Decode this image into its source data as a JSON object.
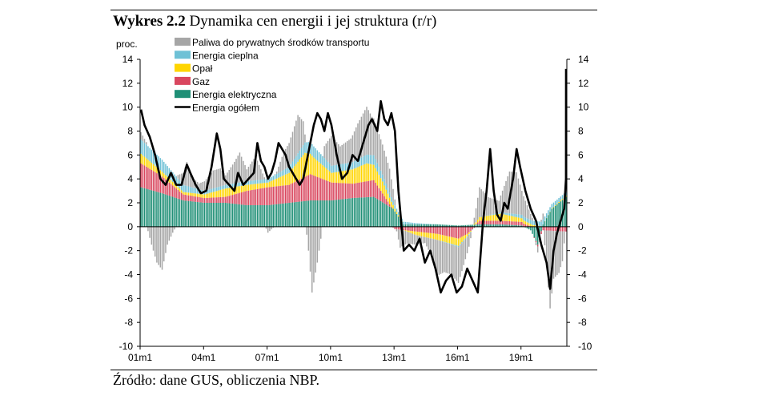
{
  "figure": {
    "title_label": "Wykres 2.2",
    "title_text": "Dynamika cen energii i jej struktura (r/r)",
    "source": "Źródło: dane GUS, obliczenia NBP."
  },
  "chart_data": {
    "type": "bar",
    "ylabel": "proc.",
    "ylim": [
      -10,
      14
    ],
    "yticks": [
      -10,
      -8,
      -6,
      -4,
      -2,
      0,
      2,
      4,
      6,
      8,
      10,
      12,
      14
    ],
    "xticks": [
      "01m1",
      "04m1",
      "07m1",
      "10m1",
      "13m1",
      "16m1",
      "19m1"
    ],
    "x_start": "2001-01",
    "x_end": "2021-02",
    "legend_position": "top-left",
    "grid": false,
    "stacked": true,
    "series": [
      {
        "name": "Paliwa do prywatnych środków transportu",
        "color": "#a6a6a6",
        "kind": "bar",
        "keys": [
          [
            "2001-01",
            0.6
          ],
          [
            "2001-04",
            0.2
          ],
          [
            "2001-07",
            -1.5
          ],
          [
            "2001-10",
            -3.0
          ],
          [
            "2002-01",
            -3.6
          ],
          [
            "2002-04",
            -1.5
          ],
          [
            "2002-07",
            -0.5
          ],
          [
            "2002-10",
            0.3
          ],
          [
            "2003-01",
            1.0
          ],
          [
            "2003-03",
            2.0
          ],
          [
            "2003-06",
            0.8
          ],
          [
            "2003-10",
            0.5
          ],
          [
            "2004-01",
            0.8
          ],
          [
            "2004-06",
            1.5
          ],
          [
            "2004-10",
            1.5
          ],
          [
            "2005-01",
            0.8
          ],
          [
            "2005-06",
            1.8
          ],
          [
            "2005-09",
            2.5
          ],
          [
            "2006-01",
            1.0
          ],
          [
            "2006-06",
            2.0
          ],
          [
            "2006-10",
            0.5
          ],
          [
            "2007-01",
            -0.5
          ],
          [
            "2007-06",
            0.2
          ],
          [
            "2007-10",
            1.5
          ],
          [
            "2008-01",
            2.0
          ],
          [
            "2008-06",
            3.2
          ],
          [
            "2008-09",
            2.0
          ],
          [
            "2008-12",
            -2.0
          ],
          [
            "2009-02",
            -5.5
          ],
          [
            "2009-05",
            -3.0
          ],
          [
            "2009-09",
            1.0
          ],
          [
            "2010-01",
            2.5
          ],
          [
            "2010-06",
            1.5
          ],
          [
            "2010-12",
            2.0
          ],
          [
            "2011-04",
            3.0
          ],
          [
            "2011-09",
            4.0
          ],
          [
            "2011-12",
            3.2
          ],
          [
            "2012-06",
            2.5
          ],
          [
            "2012-10",
            2.0
          ],
          [
            "2013-01",
            0.5
          ],
          [
            "2013-04",
            -1.5
          ],
          [
            "2013-08",
            -1.0
          ],
          [
            "2014-01",
            -0.8
          ],
          [
            "2014-06",
            -0.5
          ],
          [
            "2014-10",
            -1.5
          ],
          [
            "2015-01",
            -3.0
          ],
          [
            "2015-05",
            -2.5
          ],
          [
            "2015-09",
            -2.5
          ],
          [
            "2016-01",
            -3.0
          ],
          [
            "2016-04",
            -2.0
          ],
          [
            "2016-07",
            -1.0
          ],
          [
            "2016-10",
            0.5
          ],
          [
            "2017-01",
            2.5
          ],
          [
            "2017-06",
            1.5
          ],
          [
            "2017-12",
            1.0
          ],
          [
            "2018-06",
            3.5
          ],
          [
            "2018-10",
            3.5
          ],
          [
            "2019-01",
            2.0
          ],
          [
            "2019-06",
            0.5
          ],
          [
            "2019-10",
            -0.5
          ],
          [
            "2020-01",
            0.5
          ],
          [
            "2020-03",
            -3.0
          ],
          [
            "2020-05",
            -6.5
          ],
          [
            "2020-07",
            -4.0
          ],
          [
            "2020-10",
            -3.5
          ],
          [
            "2020-12",
            -2.5
          ],
          [
            "2021-02",
            0.5
          ]
        ]
      },
      {
        "name": "Energia cieplna",
        "color": "#6ec1d6",
        "kind": "bar",
        "keys": [
          [
            "2001-01",
            1.2
          ],
          [
            "2002-01",
            1.0
          ],
          [
            "2003-01",
            0.6
          ],
          [
            "2004-01",
            0.3
          ],
          [
            "2005-01",
            0.3
          ],
          [
            "2006-01",
            0.3
          ],
          [
            "2007-01",
            0.3
          ],
          [
            "2008-01",
            0.5
          ],
          [
            "2009-01",
            1.0
          ],
          [
            "2010-01",
            0.6
          ],
          [
            "2011-01",
            0.6
          ],
          [
            "2012-01",
            0.8
          ],
          [
            "2013-01",
            0.3
          ],
          [
            "2014-01",
            0.1
          ],
          [
            "2015-01",
            0.0
          ],
          [
            "2016-01",
            -0.1
          ],
          [
            "2017-01",
            0.0
          ],
          [
            "2018-01",
            0.1
          ],
          [
            "2019-01",
            0.3
          ],
          [
            "2020-01",
            0.4
          ],
          [
            "2021-02",
            0.3
          ]
        ]
      },
      {
        "name": "Opał",
        "color": "#ffd500",
        "kind": "bar",
        "keys": [
          [
            "2001-01",
            0.8
          ],
          [
            "2002-01",
            0.4
          ],
          [
            "2003-01",
            0.2
          ],
          [
            "2004-01",
            0.3
          ],
          [
            "2005-01",
            0.7
          ],
          [
            "2006-01",
            0.5
          ],
          [
            "2007-01",
            0.4
          ],
          [
            "2008-01",
            1.0
          ],
          [
            "2008-10",
            2.0
          ],
          [
            "2009-03",
            1.5
          ],
          [
            "2010-01",
            0.8
          ],
          [
            "2011-01",
            1.2
          ],
          [
            "2011-09",
            1.5
          ],
          [
            "2012-06",
            1.0
          ],
          [
            "2013-01",
            0.2
          ],
          [
            "2014-01",
            -0.3
          ],
          [
            "2015-01",
            -0.5
          ],
          [
            "2016-01",
            -0.6
          ],
          [
            "2017-01",
            0.3
          ],
          [
            "2018-01",
            0.6
          ],
          [
            "2019-01",
            0.3
          ],
          [
            "2020-01",
            0.0
          ],
          [
            "2021-02",
            0.1
          ]
        ]
      },
      {
        "name": "Gaz",
        "color": "#d9475f",
        "kind": "bar",
        "keys": [
          [
            "2001-01",
            2.0
          ],
          [
            "2002-01",
            1.4
          ],
          [
            "2003-01",
            0.5
          ],
          [
            "2004-01",
            0.4
          ],
          [
            "2005-01",
            0.5
          ],
          [
            "2006-01",
            1.2
          ],
          [
            "2007-01",
            1.5
          ],
          [
            "2008-01",
            1.5
          ],
          [
            "2009-01",
            2.2
          ],
          [
            "2010-01",
            1.5
          ],
          [
            "2011-01",
            1.2
          ],
          [
            "2012-01",
            1.4
          ],
          [
            "2013-01",
            -0.2
          ],
          [
            "2014-01",
            -0.4
          ],
          [
            "2015-01",
            -0.6
          ],
          [
            "2016-01",
            -1.0
          ],
          [
            "2016-06",
            -0.6
          ],
          [
            "2017-01",
            0.3
          ],
          [
            "2018-01",
            0.3
          ],
          [
            "2019-01",
            0.3
          ],
          [
            "2020-01",
            -0.3
          ],
          [
            "2021-02",
            -0.4
          ]
        ]
      },
      {
        "name": "Energia elektryczna",
        "color": "#1f8f76",
        "kind": "bar",
        "keys": [
          [
            "2001-01",
            3.3
          ],
          [
            "2002-01",
            2.8
          ],
          [
            "2003-01",
            2.2
          ],
          [
            "2004-01",
            2.0
          ],
          [
            "2005-01",
            2.0
          ],
          [
            "2006-01",
            1.8
          ],
          [
            "2007-01",
            1.8
          ],
          [
            "2008-01",
            2.0
          ],
          [
            "2009-01",
            2.2
          ],
          [
            "2010-01",
            2.2
          ],
          [
            "2011-01",
            2.4
          ],
          [
            "2012-01",
            2.5
          ],
          [
            "2012-12",
            1.5
          ],
          [
            "2013-06",
            0.2
          ],
          [
            "2014-01",
            0.2
          ],
          [
            "2015-01",
            0.2
          ],
          [
            "2016-01",
            0.1
          ],
          [
            "2017-01",
            0.2
          ],
          [
            "2018-01",
            0.2
          ],
          [
            "2019-01",
            0.1
          ],
          [
            "2019-06",
            -0.3
          ],
          [
            "2019-10",
            -1.5
          ],
          [
            "2020-01",
            0.2
          ],
          [
            "2020-06",
            1.5
          ],
          [
            "2021-02",
            2.5
          ]
        ]
      },
      {
        "name": "Energia ogółem",
        "color": "#000000",
        "kind": "line",
        "keys": [
          [
            "2001-01",
            9.8
          ],
          [
            "2001-03",
            8.5
          ],
          [
            "2001-06",
            7.5
          ],
          [
            "2001-09",
            6.0
          ],
          [
            "2001-12",
            4.0
          ],
          [
            "2002-03",
            3.5
          ],
          [
            "2002-06",
            4.5
          ],
          [
            "2002-09",
            3.5
          ],
          [
            "2002-12",
            3.5
          ],
          [
            "2003-03",
            5.2
          ],
          [
            "2003-05",
            4.5
          ],
          [
            "2003-08",
            3.5
          ],
          [
            "2003-11",
            2.8
          ],
          [
            "2004-02",
            3.0
          ],
          [
            "2004-05",
            5.0
          ],
          [
            "2004-08",
            7.8
          ],
          [
            "2004-10",
            6.5
          ],
          [
            "2004-12",
            4.0
          ],
          [
            "2005-03",
            3.5
          ],
          [
            "2005-06",
            3.0
          ],
          [
            "2005-08",
            4.5
          ],
          [
            "2005-11",
            3.5
          ],
          [
            "2006-02",
            4.0
          ],
          [
            "2006-05",
            4.5
          ],
          [
            "2006-07",
            7.0
          ],
          [
            "2006-09",
            5.5
          ],
          [
            "2006-11",
            5.0
          ],
          [
            "2007-01",
            4.0
          ],
          [
            "2007-03",
            4.5
          ],
          [
            "2007-05",
            5.5
          ],
          [
            "2007-07",
            7.0
          ],
          [
            "2007-09",
            6.5
          ],
          [
            "2007-11",
            6.0
          ],
          [
            "2008-01",
            5.0
          ],
          [
            "2008-03",
            4.5
          ],
          [
            "2008-05",
            4.0
          ],
          [
            "2008-07",
            3.5
          ],
          [
            "2008-09",
            4.0
          ],
          [
            "2008-11",
            5.5
          ],
          [
            "2009-01",
            7.0
          ],
          [
            "2009-03",
            8.5
          ],
          [
            "2009-05",
            9.5
          ],
          [
            "2009-07",
            9.0
          ],
          [
            "2009-09",
            8.0
          ],
          [
            "2009-11",
            9.5
          ],
          [
            "2010-01",
            8.5
          ],
          [
            "2010-04",
            6.0
          ],
          [
            "2010-07",
            4.0
          ],
          [
            "2010-10",
            4.5
          ],
          [
            "2011-01",
            6.0
          ],
          [
            "2011-04",
            5.5
          ],
          [
            "2011-07",
            7.0
          ],
          [
            "2011-10",
            8.5
          ],
          [
            "2011-12",
            9.0
          ],
          [
            "2012-03",
            8.0
          ],
          [
            "2012-05",
            10.5
          ],
          [
            "2012-07",
            9.0
          ],
          [
            "2012-09",
            8.5
          ],
          [
            "2012-11",
            9.5
          ],
          [
            "2013-01",
            8.0
          ],
          [
            "2013-03",
            3.0
          ],
          [
            "2013-06",
            -2.0
          ],
          [
            "2013-09",
            -1.5
          ],
          [
            "2013-12",
            -2.0
          ],
          [
            "2014-03",
            -1.0
          ],
          [
            "2014-06",
            -3.0
          ],
          [
            "2014-09",
            -2.0
          ],
          [
            "2014-12",
            -3.5
          ],
          [
            "2015-03",
            -5.5
          ],
          [
            "2015-06",
            -4.5
          ],
          [
            "2015-09",
            -4.0
          ],
          [
            "2015-12",
            -5.5
          ],
          [
            "2016-03",
            -5.0
          ],
          [
            "2016-06",
            -3.5
          ],
          [
            "2016-09",
            -4.5
          ],
          [
            "2016-12",
            -5.5
          ],
          [
            "2017-03",
            0.5
          ],
          [
            "2017-05",
            3.0
          ],
          [
            "2017-07",
            6.5
          ],
          [
            "2017-09",
            3.0
          ],
          [
            "2017-11",
            1.0
          ],
          [
            "2018-01",
            0.5
          ],
          [
            "2018-03",
            2.0
          ],
          [
            "2018-05",
            1.5
          ],
          [
            "2018-08",
            4.0
          ],
          [
            "2018-10",
            6.5
          ],
          [
            "2018-12",
            5.0
          ],
          [
            "2019-03",
            3.0
          ],
          [
            "2019-06",
            1.5
          ],
          [
            "2019-09",
            0.5
          ],
          [
            "2019-12",
            -1.5
          ],
          [
            "2020-03",
            -3.0
          ],
          [
            "2020-05",
            -5.2
          ],
          [
            "2020-07",
            -2.0
          ],
          [
            "2020-09",
            -0.5
          ],
          [
            "2020-11",
            0.5
          ],
          [
            "2021-01",
            1.5
          ],
          [
            "2021-02",
            4.0
          ],
          [
            "2021-03",
            13.2
          ]
        ]
      }
    ]
  }
}
